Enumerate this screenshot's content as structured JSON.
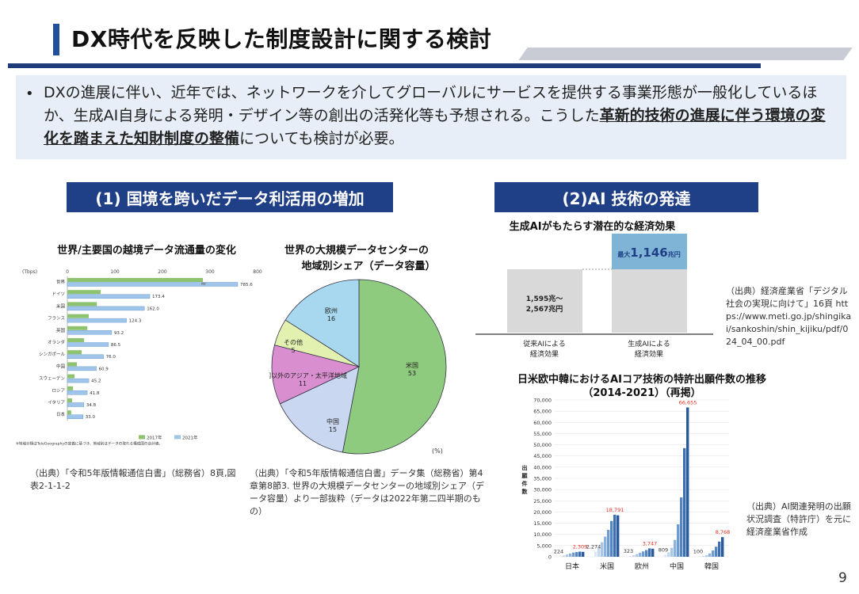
{
  "slide": {
    "title": "DX時代を反映した制度設計に関する検討",
    "page_number": "9",
    "bullet": {
      "text_normal": "DXの進展に伴い、近年では、ネットワークを介してグローバルにサービスを提供する事業形態が一般化しているほか、生成AI自身による発明・デザイン等の創出の活発化等も予想される。こうした",
      "text_bold": "革新的技術の進展に伴う環境の変化を踏まえた知財制度の整備",
      "text_tail": "についても検討が必要。"
    },
    "sections": {
      "left": "(1) 国境を跨いだデータ利活用の増加",
      "right": "(2)AI 技術の発達"
    },
    "colors": {
      "navy": "#1f3f86",
      "accent": "#1f4e9b",
      "bullet_bg": "#e8eef7"
    }
  },
  "chart_data": [
    {
      "type": "bar",
      "title": "世界/主要国の越境データ流通量の変化",
      "unit_label": "(Tbps)",
      "x_ticks": [
        "0",
        "100",
        "200",
        "300",
        "800"
      ],
      "categories": [
        "世界",
        "ドイツ",
        "米国",
        "フランス",
        "英国",
        "オランダ",
        "シンガポール",
        "中国",
        "スウェーデン",
        "ロシア",
        "イタリア",
        "日本"
      ],
      "series": [
        {
          "name": "2017年",
          "color": "#8dc26f",
          "values": [
            285,
            70,
            62,
            45,
            42,
            35,
            30,
            20,
            15,
            12,
            10,
            8
          ]
        },
        {
          "name": "2021年",
          "color": "#9fc6ea",
          "values": [
            785.6,
            173.4,
            162.0,
            124.3,
            93.2,
            86.5,
            76.0,
            60.9,
            45.2,
            41.8,
            34.8,
            33.0
          ]
        }
      ],
      "value_labels": [
        "785.6",
        "173.4",
        "162.0",
        "124.3",
        "93.2",
        "86.5",
        "76.0",
        "60.9",
        "45.2",
        "41.8",
        "34.8",
        "33.0"
      ],
      "note": "※地域分類はTeleGeographyの定義に基づき、地域別はデータの取れる構成国の合計値。",
      "source": "（出典）「令和5年版情報通信白書」（総務省）8頁,図表2-1-1-2"
    },
    {
      "type": "pie",
      "title": "世界の大規模データセンターの",
      "title2": "地域別シェア（データ容量）",
      "unit": "(%)",
      "slices": [
        {
          "name": "米国",
          "value": 53,
          "color": "#8fcb7e"
        },
        {
          "name": "中国",
          "value": 15,
          "color": "#c9d8f0"
        },
        {
          "name": "中国以外のアジア・太平洋地域",
          "value": 11,
          "color": "#d98fcf"
        },
        {
          "name": "その他",
          "value": 5,
          "color": "#e2f0b0"
        },
        {
          "name": "欧州",
          "value": 16,
          "color": "#a8d8f0"
        }
      ],
      "source": "（出典）「令和5年版情報通信白書」データ集（総務省）第4章第8節3. 世界の大規模データセンターの地域別シェア（データ容量）より一部抜粋（データは2022年第二四半期のもの）"
    },
    {
      "type": "bar",
      "title": "生成AIがもたらす潜在的な経済効果",
      "categories": [
        "従来AIによる 経済効果",
        "生成AIによる 経済効果"
      ],
      "base_label": "1,595兆～ 2,567兆円",
      "top_label_prefix": "最大",
      "top_label_value": "1,146",
      "top_label_unit": "兆円",
      "source": "（出典）経済産業省「デジタル社会の実現に向けて」16頁 https://www.meti.go.jp/shingikai/sankoshin/shin_kijiku/pdf/024_04_00.pdf"
    },
    {
      "type": "bar",
      "title": "日米欧中韓におけるAIコア技術の特許出願件数の推移",
      "subtitle": "（2014-2021）（再掲）",
      "ylabel": "出願件数",
      "ylim": [
        0,
        70000
      ],
      "y_ticks": [
        "0",
        "5,000",
        "10,000",
        "15,000",
        "20,000",
        "25,000",
        "30,000",
        "35,000",
        "40,000",
        "45,000",
        "50,000",
        "55,000",
        "60,000",
        "65,000",
        "70,000"
      ],
      "groups": [
        {
          "name": "日本",
          "values": [
            224,
            600,
            1000,
            1500,
            1900,
            2100,
            2309,
            2200
          ],
          "first": "224",
          "peak": "2,309"
        },
        {
          "name": "米国",
          "values": [
            2274,
            4000,
            6500,
            9000,
            12000,
            16000,
            18791,
            18500
          ],
          "first": "2,274",
          "peak": "18,791"
        },
        {
          "name": "欧州",
          "values": [
            323,
            700,
            1200,
            1800,
            2400,
            3000,
            3747,
            3600
          ],
          "first": "323",
          "peak": "3,747"
        },
        {
          "name": "中国",
          "values": [
            809,
            2000,
            4000,
            7500,
            14500,
            26500,
            48500,
            66655
          ],
          "first": "809",
          "peak": "66,655"
        },
        {
          "name": "韓国",
          "values": [
            100,
            300,
            700,
            1500,
            2800,
            4500,
            6800,
            8768
          ],
          "first": "100",
          "peak": "8,768"
        }
      ],
      "source": "（出典）AI関連発明の出願状況調査（特許庁）を元に経済産業省作成"
    }
  ]
}
